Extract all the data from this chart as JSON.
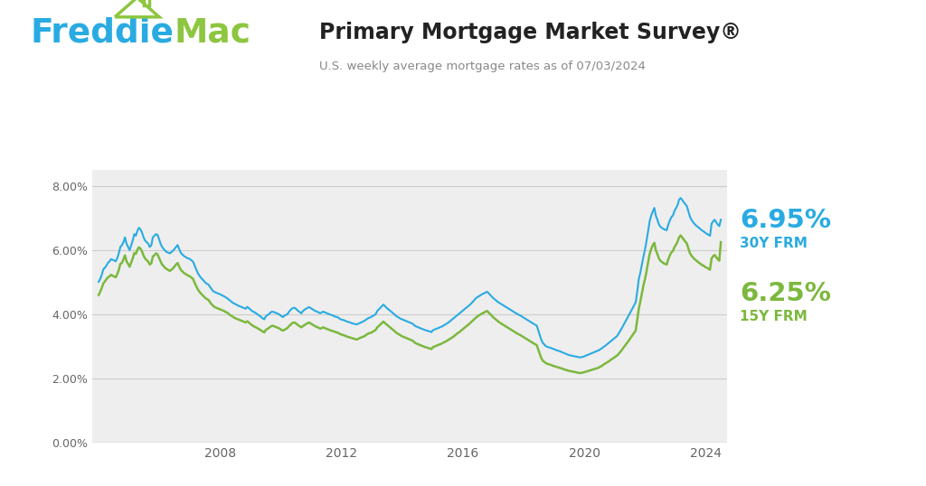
{
  "title": "Primary Mortgage Market Survey®",
  "subtitle": "U.S. weekly average mortgage rates as of 07/03/2024",
  "freddie_blue": "#29ABE2",
  "freddie_green": "#8DC63F",
  "bg_color": "#FFFFFF",
  "plot_bg_color": "#EEEEEE",
  "line_30y_color": "#29ABE2",
  "line_15y_color": "#7CB83E",
  "label_30y": "6.95%",
  "label_15y": "6.25%",
  "label_30y_sub": "30Y FRM",
  "label_15y_sub": "15Y FRM",
  "yticks": [
    0.0,
    2.0,
    4.0,
    6.0,
    8.0
  ],
  "ytick_labels": [
    "0.00%",
    "2.00%",
    "4.00%",
    "6.00%",
    "8.00%"
  ],
  "xtick_labels": [
    "2008",
    "2012",
    "2016",
    "2020",
    "2024"
  ],
  "xtick_vals": [
    2008,
    2012,
    2016,
    2020,
    2024
  ],
  "title_fontsize": 18,
  "subtitle_fontsize": 10,
  "rate30y": [
    5.01,
    5.1,
    5.23,
    5.4,
    5.45,
    5.52,
    5.6,
    5.65,
    5.72,
    5.7,
    5.68,
    5.65,
    5.75,
    5.9,
    6.1,
    6.15,
    6.25,
    6.4,
    6.2,
    6.1,
    6.0,
    6.15,
    6.3,
    6.5,
    6.45,
    6.6,
    6.7,
    6.65,
    6.55,
    6.4,
    6.3,
    6.25,
    6.2,
    6.1,
    6.15,
    6.4,
    6.45,
    6.5,
    6.48,
    6.35,
    6.2,
    6.1,
    6.04,
    5.98,
    5.94,
    5.92,
    5.9,
    5.94,
    5.98,
    6.04,
    6.1,
    6.16,
    6.04,
    5.92,
    5.87,
    5.82,
    5.79,
    5.76,
    5.74,
    5.72,
    5.68,
    5.64,
    5.52,
    5.4,
    5.29,
    5.21,
    5.14,
    5.09,
    5.04,
    4.98,
    4.95,
    4.92,
    4.85,
    4.78,
    4.72,
    4.69,
    4.67,
    4.65,
    4.63,
    4.61,
    4.58,
    4.56,
    4.53,
    4.5,
    4.46,
    4.42,
    4.38,
    4.35,
    4.32,
    4.3,
    4.27,
    4.25,
    4.23,
    4.21,
    4.19,
    4.17,
    4.23,
    4.19,
    4.15,
    4.1,
    4.08,
    4.05,
    4.02,
    3.98,
    3.95,
    3.91,
    3.87,
    3.84,
    3.93,
    3.97,
    4.0,
    4.05,
    4.08,
    4.07,
    4.05,
    4.03,
    4.01,
    3.98,
    3.94,
    3.91,
    3.95,
    3.98,
    4.0,
    4.08,
    4.13,
    4.18,
    4.2,
    4.19,
    4.14,
    4.1,
    4.06,
    4.03,
    4.1,
    4.14,
    4.17,
    4.2,
    4.22,
    4.19,
    4.16,
    4.13,
    4.1,
    4.08,
    4.06,
    4.03,
    4.05,
    4.08,
    4.06,
    4.04,
    4.02,
    4.0,
    3.98,
    3.97,
    3.94,
    3.92,
    3.91,
    3.89,
    3.85,
    3.83,
    3.82,
    3.8,
    3.78,
    3.76,
    3.75,
    3.73,
    3.71,
    3.7,
    3.69,
    3.68,
    3.71,
    3.73,
    3.75,
    3.78,
    3.8,
    3.84,
    3.87,
    3.89,
    3.91,
    3.94,
    3.97,
    4.0,
    4.1,
    4.15,
    4.2,
    4.25,
    4.3,
    4.25,
    4.2,
    4.16,
    4.12,
    4.08,
    4.04,
    4.0,
    3.95,
    3.92,
    3.89,
    3.86,
    3.84,
    3.82,
    3.8,
    3.78,
    3.76,
    3.74,
    3.72,
    3.7,
    3.65,
    3.62,
    3.6,
    3.58,
    3.56,
    3.54,
    3.52,
    3.5,
    3.49,
    3.47,
    3.46,
    3.44,
    3.5,
    3.52,
    3.54,
    3.56,
    3.58,
    3.6,
    3.62,
    3.65,
    3.68,
    3.71,
    3.74,
    3.78,
    3.82,
    3.86,
    3.9,
    3.94,
    3.98,
    4.02,
    4.06,
    4.1,
    4.14,
    4.18,
    4.22,
    4.26,
    4.3,
    4.35,
    4.4,
    4.46,
    4.51,
    4.54,
    4.57,
    4.6,
    4.63,
    4.65,
    4.68,
    4.7,
    4.65,
    4.6,
    4.55,
    4.5,
    4.46,
    4.42,
    4.38,
    4.35,
    4.32,
    4.29,
    4.26,
    4.23,
    4.2,
    4.17,
    4.14,
    4.11,
    4.08,
    4.05,
    4.02,
    3.99,
    3.97,
    3.94,
    3.91,
    3.88,
    3.85,
    3.82,
    3.79,
    3.76,
    3.73,
    3.7,
    3.67,
    3.65,
    3.5,
    3.35,
    3.2,
    3.1,
    3.05,
    3.0,
    2.98,
    2.96,
    2.95,
    2.93,
    2.91,
    2.89,
    2.87,
    2.86,
    2.84,
    2.82,
    2.8,
    2.78,
    2.76,
    2.74,
    2.72,
    2.71,
    2.7,
    2.69,
    2.68,
    2.67,
    2.66,
    2.65,
    2.66,
    2.67,
    2.69,
    2.71,
    2.73,
    2.75,
    2.77,
    2.79,
    2.81,
    2.83,
    2.85,
    2.87,
    2.9,
    2.93,
    2.97,
    3.0,
    3.04,
    3.08,
    3.12,
    3.16,
    3.2,
    3.24,
    3.28,
    3.32,
    3.4,
    3.48,
    3.56,
    3.65,
    3.74,
    3.83,
    3.92,
    4.01,
    4.1,
    4.19,
    4.28,
    4.37,
    4.72,
    5.1,
    5.3,
    5.55,
    5.8,
    6.02,
    6.29,
    6.6,
    6.9,
    7.08,
    7.2,
    7.32,
    7.08,
    6.95,
    6.8,
    6.73,
    6.69,
    6.66,
    6.64,
    6.62,
    6.79,
    6.92,
    7.03,
    7.08,
    7.22,
    7.31,
    7.4,
    7.57,
    7.63,
    7.57,
    7.5,
    7.44,
    7.38,
    7.22,
    7.05,
    6.95,
    6.88,
    6.82,
    6.77,
    6.73,
    6.69,
    6.65,
    6.61,
    6.58,
    6.54,
    6.51,
    6.48,
    6.45,
    6.82,
    6.9,
    6.95,
    6.87,
    6.8,
    6.75,
    6.95
  ],
  "rate15y": [
    4.6,
    4.7,
    4.82,
    4.96,
    5.02,
    5.09,
    5.15,
    5.18,
    5.23,
    5.2,
    5.18,
    5.15,
    5.25,
    5.38,
    5.57,
    5.6,
    5.71,
    5.84,
    5.65,
    5.57,
    5.48,
    5.61,
    5.74,
    5.91,
    5.88,
    6.01,
    6.09,
    6.05,
    5.96,
    5.83,
    5.74,
    5.69,
    5.64,
    5.55,
    5.59,
    5.8,
    5.84,
    5.9,
    5.87,
    5.76,
    5.65,
    5.55,
    5.5,
    5.44,
    5.41,
    5.38,
    5.35,
    5.39,
    5.43,
    5.49,
    5.55,
    5.6,
    5.49,
    5.39,
    5.34,
    5.29,
    5.26,
    5.23,
    5.2,
    5.18,
    5.14,
    5.1,
    4.98,
    4.88,
    4.78,
    4.71,
    4.65,
    4.6,
    4.55,
    4.5,
    4.47,
    4.44,
    4.37,
    4.31,
    4.26,
    4.22,
    4.2,
    4.18,
    4.16,
    4.14,
    4.12,
    4.1,
    4.07,
    4.05,
    4.01,
    3.97,
    3.94,
    3.91,
    3.88,
    3.86,
    3.84,
    3.82,
    3.8,
    3.78,
    3.76,
    3.74,
    3.78,
    3.74,
    3.7,
    3.66,
    3.63,
    3.6,
    3.58,
    3.55,
    3.52,
    3.49,
    3.46,
    3.43,
    3.51,
    3.54,
    3.57,
    3.61,
    3.64,
    3.63,
    3.61,
    3.59,
    3.57,
    3.55,
    3.51,
    3.49,
    3.51,
    3.54,
    3.57,
    3.63,
    3.67,
    3.72,
    3.74,
    3.73,
    3.69,
    3.65,
    3.62,
    3.59,
    3.63,
    3.66,
    3.69,
    3.72,
    3.74,
    3.71,
    3.68,
    3.65,
    3.62,
    3.6,
    3.58,
    3.55,
    3.56,
    3.59,
    3.57,
    3.55,
    3.53,
    3.51,
    3.49,
    3.48,
    3.46,
    3.44,
    3.43,
    3.41,
    3.38,
    3.36,
    3.35,
    3.33,
    3.31,
    3.29,
    3.28,
    3.26,
    3.25,
    3.23,
    3.22,
    3.21,
    3.24,
    3.26,
    3.28,
    3.3,
    3.32,
    3.36,
    3.39,
    3.41,
    3.42,
    3.45,
    3.48,
    3.51,
    3.59,
    3.63,
    3.68,
    3.72,
    3.77,
    3.72,
    3.68,
    3.64,
    3.6,
    3.56,
    3.52,
    3.48,
    3.43,
    3.4,
    3.37,
    3.34,
    3.31,
    3.29,
    3.27,
    3.25,
    3.23,
    3.21,
    3.19,
    3.17,
    3.12,
    3.09,
    3.07,
    3.05,
    3.03,
    3.01,
    2.99,
    2.97,
    2.96,
    2.94,
    2.93,
    2.91,
    2.97,
    2.99,
    3.01,
    3.03,
    3.05,
    3.07,
    3.09,
    3.12,
    3.14,
    3.17,
    3.2,
    3.23,
    3.26,
    3.29,
    3.33,
    3.37,
    3.41,
    3.44,
    3.48,
    3.52,
    3.56,
    3.6,
    3.64,
    3.68,
    3.72,
    3.77,
    3.81,
    3.86,
    3.9,
    3.94,
    3.97,
    4.0,
    4.03,
    4.05,
    4.08,
    4.1,
    4.05,
    4.0,
    3.95,
    3.9,
    3.86,
    3.82,
    3.78,
    3.74,
    3.71,
    3.68,
    3.65,
    3.62,
    3.59,
    3.56,
    3.53,
    3.5,
    3.47,
    3.44,
    3.41,
    3.38,
    3.36,
    3.33,
    3.3,
    3.27,
    3.24,
    3.21,
    3.18,
    3.15,
    3.12,
    3.09,
    3.06,
    3.04,
    2.9,
    2.76,
    2.63,
    2.54,
    2.51,
    2.47,
    2.45,
    2.43,
    2.42,
    2.4,
    2.38,
    2.37,
    2.35,
    2.34,
    2.32,
    2.31,
    2.29,
    2.27,
    2.26,
    2.24,
    2.23,
    2.22,
    2.21,
    2.2,
    2.19,
    2.18,
    2.17,
    2.16,
    2.17,
    2.18,
    2.19,
    2.21,
    2.22,
    2.24,
    2.25,
    2.27,
    2.28,
    2.3,
    2.31,
    2.33,
    2.36,
    2.38,
    2.42,
    2.45,
    2.48,
    2.51,
    2.54,
    2.58,
    2.61,
    2.64,
    2.68,
    2.71,
    2.76,
    2.82,
    2.88,
    2.95,
    3.01,
    3.08,
    3.14,
    3.21,
    3.28,
    3.35,
    3.42,
    3.49,
    3.83,
    4.17,
    4.4,
    4.65,
    4.9,
    5.1,
    5.34,
    5.62,
    5.88,
    6.04,
    6.15,
    6.23,
    6.0,
    5.88,
    5.74,
    5.67,
    5.63,
    5.59,
    5.57,
    5.55,
    5.71,
    5.83,
    5.93,
    5.97,
    6.09,
    6.17,
    6.26,
    6.4,
    6.46,
    6.4,
    6.33,
    6.27,
    6.21,
    6.06,
    5.91,
    5.83,
    5.77,
    5.72,
    5.68,
    5.64,
    5.6,
    5.57,
    5.53,
    5.51,
    5.47,
    5.45,
    5.42,
    5.39,
    5.74,
    5.81,
    5.85,
    5.78,
    5.72,
    5.67,
    6.25
  ],
  "xmin": 2003.8,
  "xmax": 2024.7,
  "ymin": 0.0,
  "ymax": 8.5
}
